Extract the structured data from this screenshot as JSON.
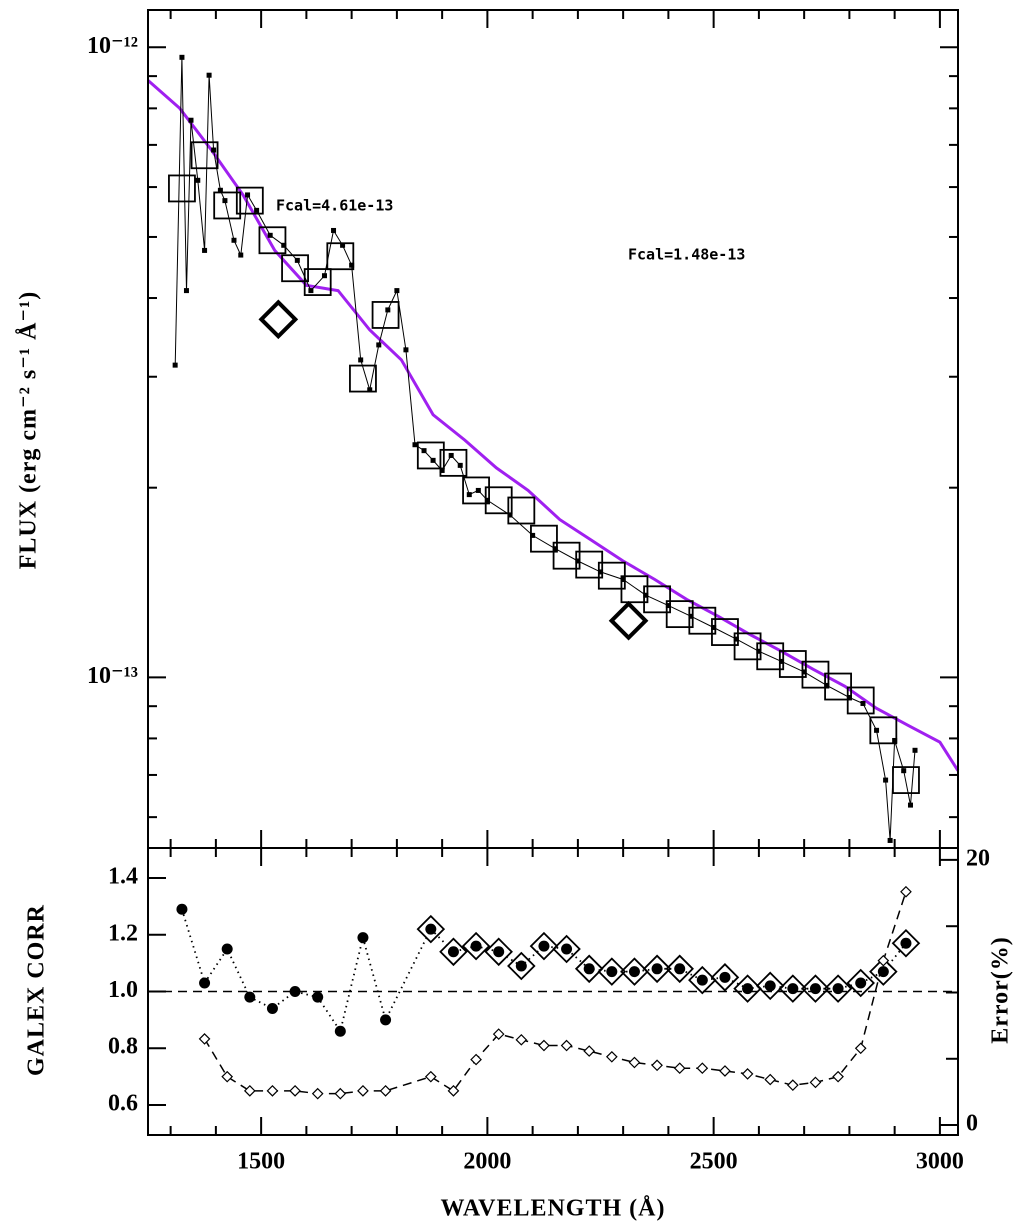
{
  "chart_data": [
    {
      "type": "line",
      "scale": "log",
      "ylabel": "FLUX (erg cm⁻² s⁻¹ Å⁻¹)",
      "xlim": [
        1250,
        3040
      ],
      "ylim": [
        5.36e-14,
        1.146e-12
      ],
      "yticks": [
        {
          "value": 1e-12,
          "label": "10⁻¹²"
        },
        {
          "value": 1e-13,
          "label": "10⁻¹³"
        }
      ],
      "yminorticks": [
        6e-14,
        7e-14,
        8e-14,
        9e-14,
        2e-13,
        3e-13,
        4e-13,
        5e-13,
        6e-13,
        7e-13,
        8e-13,
        9e-13
      ],
      "annotations": [
        "Fcal=4.61e-13",
        "Fcal=1.48e-13"
      ],
      "series": [
        {
          "color": "#a020f0",
          "line": "solid",
          "marker": "none",
          "x": [
            1250,
            1320,
            1390,
            1460,
            1530,
            1600,
            1670,
            1740,
            1810,
            1880,
            1950,
            2020,
            2090,
            2160,
            2230,
            2300,
            2370,
            2440,
            2510,
            2580,
            2650,
            2720,
            2790,
            2860,
            2930,
            3000,
            3040
          ],
          "values": [
            8.86e-13,
            8e-13,
            6.87e-13,
            5.83e-13,
            4.76e-13,
            4.19e-13,
            4.11e-13,
            3.56e-13,
            3.19e-13,
            2.61e-13,
            2.38e-13,
            2.15e-13,
            1.98e-13,
            1.78e-13,
            1.65e-13,
            1.53e-13,
            1.43e-13,
            1.33e-13,
            1.25e-13,
            1.17e-13,
            1.1e-13,
            1.03e-13,
            9.68e-14,
            8.93e-14,
            8.39e-14,
            7.89e-14,
            7.11e-14
          ]
        },
        {
          "color": "#000000",
          "line": "thin",
          "marker": "square",
          "x": [
            1310,
            1325,
            1335,
            1345,
            1360,
            1375,
            1385,
            1395,
            1410,
            1420,
            1440,
            1455,
            1470,
            1490,
            1520,
            1550,
            1580,
            1610,
            1640,
            1660,
            1680,
            1700,
            1720,
            1740,
            1760,
            1780,
            1800,
            1820,
            1840,
            1860,
            1880,
            1900,
            1920,
            1940,
            1960,
            1980,
            2000,
            2050,
            2100,
            2150,
            2200,
            2250,
            2300,
            2350,
            2400,
            2450,
            2500,
            2550,
            2600,
            2650,
            2700,
            2750,
            2800,
            2830,
            2860,
            2880,
            2890,
            2900,
            2920,
            2935,
            2945
          ],
          "values": [
            3.13e-13,
            9.64e-13,
            4.11e-13,
            7.66e-13,
            6.15e-13,
            4.76e-13,
            9.03e-13,
            6.87e-13,
            5.93e-13,
            5.71e-13,
            4.94e-13,
            4.68e-13,
            5.83e-13,
            5.51e-13,
            5.03e-13,
            4.85e-13,
            4.59e-13,
            4.11e-13,
            4.34e-13,
            5.12e-13,
            4.85e-13,
            4.51e-13,
            3.19e-13,
            2.86e-13,
            3.37e-13,
            3.83e-13,
            4.11e-13,
            3.31e-13,
            2.34e-13,
            2.29e-13,
            2.21e-13,
            2.13e-13,
            2.25e-13,
            2.17e-13,
            1.95e-13,
            1.98e-13,
            1.91e-13,
            1.81e-13,
            1.68e-13,
            1.6e-13,
            1.53e-13,
            1.47e-13,
            1.43e-13,
            1.35e-13,
            1.3e-13,
            1.25e-13,
            1.2e-13,
            1.15e-13,
            1.1e-13,
            1.06e-13,
            1.02e-13,
            9.71e-14,
            9.29e-14,
            9.09e-14,
            8.24e-14,
            6.87e-14,
            5.51e-14,
            7.94e-14,
            7.11e-14,
            6.27e-14,
            7.66e-14
          ]
        },
        {
          "color": "#000000",
          "line": "none",
          "marker": "open-square",
          "x": [
            1325,
            1375,
            1425,
            1475,
            1525,
            1575,
            1625,
            1675,
            1725,
            1775,
            1875,
            1925,
            1975,
            2025,
            2075,
            2125,
            2175,
            2225,
            2275,
            2325,
            2375,
            2425,
            2475,
            2525,
            2575,
            2625,
            2675,
            2725,
            2775,
            2825,
            2875,
            2925
          ],
          "values": [
            5.97e-13,
            6.74e-13,
            5.61e-13,
            5.71e-13,
            4.94e-13,
            4.46e-13,
            4.24e-13,
            4.66e-13,
            2.98e-13,
            3.76e-13,
            2.25e-13,
            2.19e-13,
            1.98e-13,
            1.91e-13,
            1.84e-13,
            1.66e-13,
            1.56e-13,
            1.51e-13,
            1.45e-13,
            1.38e-13,
            1.33e-13,
            1.26e-13,
            1.23e-13,
            1.18e-13,
            1.12e-13,
            1.08e-13,
            1.05e-13,
            1.01e-13,
            9.67e-14,
            9.19e-14,
            8.24e-14,
            6.87e-14
          ]
        },
        {
          "color": "#000000",
          "line": "none",
          "marker": "big-diamond",
          "x": [
            1538,
            2312
          ],
          "values": [
            3.7e-13,
            1.23e-13
          ]
        }
      ]
    },
    {
      "type": "line",
      "scale": "linear",
      "xlabel": "WAVELENGTH (Å)",
      "ylabel": "GALEX CORR",
      "y2label": "Error(%)",
      "xlim": [
        1250,
        3040
      ],
      "ylim": [
        0.494,
        1.506
      ],
      "y2lim": [
        -0.75,
        20.9
      ],
      "xticks": [
        1500,
        2000,
        2500,
        3000
      ],
      "xminorticks": [
        1300,
        1400,
        1600,
        1700,
        1800,
        1900,
        2100,
        2200,
        2300,
        2400,
        2600,
        2700,
        2800,
        2900
      ],
      "yticks": [
        0.6,
        0.8,
        {
          "value": 1,
          "label": "1.0"
        },
        1.2,
        1.4
      ],
      "y2ticks": [
        0,
        20
      ],
      "y2minorticks": [
        5,
        10,
        15
      ],
      "reference_line": 1,
      "series": [
        {
          "color": "#000000",
          "line": "dotted",
          "marker": "circle",
          "x": [
            1325,
            1375,
            1425,
            1475,
            1525,
            1575,
            1625,
            1675,
            1725,
            1775,
            1875,
            1925,
            1975,
            2025,
            2075,
            2125,
            2175,
            2225,
            2275,
            2325,
            2375,
            2425,
            2475,
            2525,
            2575,
            2625,
            2675,
            2725,
            2775,
            2825,
            2875,
            2925
          ],
          "values": [
            1.29,
            1.03,
            1.15,
            0.98,
            0.94,
            1.0,
            0.98,
            0.86,
            1.19,
            0.9,
            1.22,
            1.14,
            1.16,
            1.14,
            1.09,
            1.16,
            1.15,
            1.08,
            1.07,
            1.07,
            1.08,
            1.08,
            1.04,
            1.05,
            1.01,
            1.02,
            1.01,
            1.01,
            1.01,
            1.03,
            1.07,
            1.17
          ]
        },
        {
          "color": "#000000",
          "line": "none",
          "marker": "open-diamond",
          "x": [
            1875,
            1925,
            1975,
            2025,
            2075,
            2125,
            2175,
            2225,
            2275,
            2325,
            2375,
            2425,
            2475,
            2525,
            2575,
            2625,
            2675,
            2725,
            2775,
            2825,
            2875,
            2925
          ],
          "values": [
            1.22,
            1.14,
            1.16,
            1.14,
            1.09,
            1.16,
            1.15,
            1.08,
            1.07,
            1.07,
            1.08,
            1.08,
            1.04,
            1.05,
            1.01,
            1.02,
            1.01,
            1.01,
            1.01,
            1.03,
            1.07,
            1.17
          ]
        },
        {
          "color": "#000000",
          "line": "dashed",
          "marker": "small-diamond",
          "axis": "y2",
          "x": [
            1375,
            1425,
            1475,
            1525,
            1575,
            1625,
            1675,
            1725,
            1775,
            1875,
            1925,
            1975,
            2025,
            2075,
            2125,
            2175,
            2225,
            2275,
            2325,
            2375,
            2425,
            2475,
            2525,
            2575,
            2625,
            2675,
            2725,
            2775,
            2825,
            2875,
            2925
          ],
          "values": [
            6.5,
            3.65,
            2.58,
            2.58,
            2.58,
            2.37,
            2.37,
            2.58,
            2.58,
            3.65,
            2.58,
            4.94,
            6.86,
            6.43,
            6.0,
            6.0,
            5.58,
            5.15,
            4.72,
            4.51,
            4.29,
            4.29,
            4.08,
            3.86,
            3.43,
            3.01,
            3.22,
            3.65,
            5.79,
            12.4,
            17.6
          ]
        }
      ]
    }
  ]
}
